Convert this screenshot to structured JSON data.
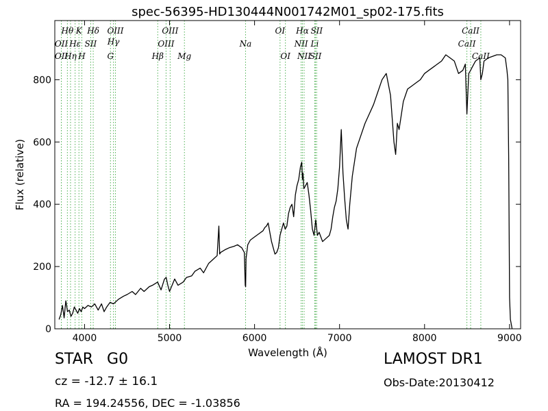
{
  "chart_data": {
    "type": "line",
    "title": "spec-56395-HD130444N001742M01_sp02-175.fits",
    "xlabel": "Wavelength (Å)",
    "ylabel": "Flux (relative)",
    "xlim": [
      3650,
      9130
    ],
    "ylim": [
      0,
      990
    ],
    "xticks": [
      4000,
      5000,
      6000,
      7000,
      8000,
      9000
    ],
    "yticks": [
      0,
      200,
      400,
      600,
      800
    ],
    "grid": false,
    "series": [
      {
        "color": "#000000",
        "x": [
          3700,
          3720,
          3740,
          3760,
          3780,
          3800,
          3820,
          3840,
          3860,
          3880,
          3900,
          3920,
          3940,
          3960,
          3980,
          4000,
          4040,
          4080,
          4120,
          4160,
          4200,
          4230,
          4260,
          4300,
          4340,
          4400,
          4460,
          4500,
          4560,
          4600,
          4660,
          4700,
          4760,
          4800,
          4860,
          4900,
          4940,
          4960,
          4980,
          5000,
          5060,
          5100,
          5160,
          5200,
          5260,
          5300,
          5360,
          5400,
          5460,
          5500,
          5560,
          5580,
          5590,
          5600,
          5660,
          5700,
          5760,
          5800,
          5850,
          5880,
          5890,
          5895,
          5900,
          5920,
          5950,
          6000,
          6050,
          6100,
          6120,
          6140,
          6160,
          6180,
          6200,
          6220,
          6240,
          6260,
          6280,
          6300,
          6320,
          6340,
          6360,
          6380,
          6400,
          6420,
          6440,
          6460,
          6480,
          6500,
          6520,
          6540,
          6555,
          6563,
          6570,
          6580,
          6600,
          6620,
          6640,
          6660,
          6680,
          6700,
          6720,
          6740,
          6760,
          6800,
          6840,
          6880,
          6900,
          6920,
          6940,
          6960,
          6980,
          7000,
          7020,
          7040,
          7060,
          7080,
          7100,
          7120,
          7150,
          7200,
          7250,
          7300,
          7350,
          7400,
          7450,
          7500,
          7550,
          7600,
          7640,
          7660,
          7680,
          7700,
          7750,
          7800,
          7850,
          7900,
          7950,
          8000,
          8050,
          8100,
          8150,
          8200,
          8250,
          8300,
          8350,
          8400,
          8450,
          8480,
          8498,
          8520,
          8542,
          8560,
          8600,
          8650,
          8662,
          8680,
          8700,
          8750,
          8800,
          8850,
          8900,
          8950,
          8970,
          8980,
          8990,
          9000,
          9010,
          9020,
          9030
        ],
        "y": [
          30,
          45,
          75,
          35,
          90,
          55,
          60,
          40,
          50,
          70,
          60,
          50,
          65,
          55,
          70,
          65,
          75,
          70,
          80,
          60,
          80,
          55,
          70,
          85,
          80,
          95,
          105,
          110,
          120,
          110,
          130,
          120,
          135,
          140,
          150,
          125,
          160,
          165,
          140,
          120,
          160,
          140,
          150,
          165,
          170,
          185,
          195,
          180,
          210,
          220,
          235,
          330,
          240,
          245,
          255,
          260,
          265,
          270,
          260,
          245,
          140,
          135,
          225,
          270,
          285,
          295,
          305,
          315,
          325,
          330,
          340,
          310,
          280,
          260,
          240,
          245,
          260,
          300,
          320,
          340,
          320,
          330,
          370,
          390,
          400,
          360,
          430,
          460,
          480,
          520,
          535,
          480,
          500,
          450,
          460,
          470,
          430,
          380,
          320,
          300,
          350,
          300,
          310,
          280,
          290,
          300,
          320,
          360,
          390,
          410,
          450,
          520,
          640,
          500,
          420,
          350,
          320,
          400,
          490,
          580,
          620,
          660,
          690,
          720,
          760,
          800,
          820,
          750,
          600,
          560,
          660,
          640,
          730,
          770,
          780,
          790,
          800,
          820,
          830,
          840,
          850,
          860,
          880,
          870,
          860,
          820,
          830,
          850,
          690,
          820,
          830,
          840,
          860,
          870,
          800,
          820,
          860,
          870,
          875,
          880,
          880,
          870,
          830,
          800,
          550,
          100,
          30,
          15,
          0
        ]
      }
    ],
    "line_markers": [
      {
        "label": "OII",
        "x": 3727,
        "row": 3
      },
      {
        "label": "OII",
        "x": 3727,
        "row": 4
      },
      {
        "label": "Hθ",
        "x": 3798,
        "row": 1
      },
      {
        "label": "Hη",
        "x": 3835,
        "row": 4
      },
      {
        "label": "Hε",
        "x": 3889,
        "row": 3
      },
      {
        "label": "K",
        "x": 3934,
        "row": 1
      },
      {
        "label": "H",
        "x": 3968,
        "row": 4
      },
      {
        "label": "SII",
        "x": 4072,
        "row": 3
      },
      {
        "label": "Hδ",
        "x": 4102,
        "row": 1
      },
      {
        "label": "Hγ",
        "x": 4340,
        "row": 2
      },
      {
        "label": "OIII",
        "x": 4363,
        "row": 1
      },
      {
        "label": "G",
        "x": 4305,
        "row": 4
      },
      {
        "label": "Hβ",
        "x": 4861,
        "row": 4
      },
      {
        "label": "OIII",
        "x": 4959,
        "row": 3
      },
      {
        "label": "OIII",
        "x": 5007,
        "row": 1
      },
      {
        "label": "Mg",
        "x": 5175,
        "row": 4
      },
      {
        "label": "Na",
        "x": 5894,
        "row": 3
      },
      {
        "label": "OI",
        "x": 6300,
        "row": 1
      },
      {
        "label": "OI",
        "x": 6363,
        "row": 4
      },
      {
        "label": "NII",
        "x": 6548,
        "row": 3
      },
      {
        "label": "Hα",
        "x": 6563,
        "row": 1
      },
      {
        "label": "NII",
        "x": 6583,
        "row": 4
      },
      {
        "label": "Li",
        "x": 6708,
        "row": 3
      },
      {
        "label": "SII",
        "x": 6717,
        "row": 4
      },
      {
        "label": "SII",
        "x": 6731,
        "row": 1
      },
      {
        "label": "CaII",
        "x": 8498,
        "row": 3
      },
      {
        "label": "CaII",
        "x": 8542,
        "row": 1
      },
      {
        "label": "CaII",
        "x": 8662,
        "row": 4
      }
    ],
    "line_marker_color": "#4caf50"
  },
  "info": {
    "object_class": "STAR",
    "subclass": "G0",
    "survey": "LAMOST DR1",
    "cz": "cz = -12.7 ± 16.1",
    "obs_date": "Obs-Date:20130412",
    "radec": "RA = 194.24556, DEC = -1.03856"
  }
}
